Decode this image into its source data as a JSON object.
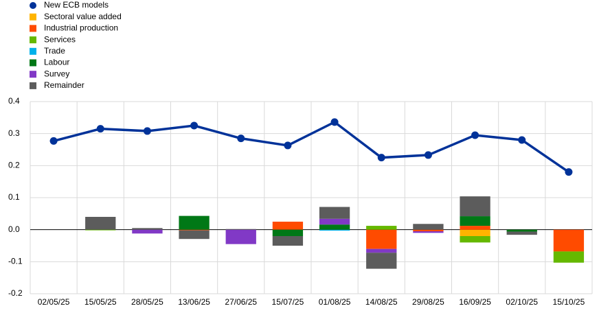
{
  "chart_data": {
    "type": "bar",
    "categories": [
      "02/05/25",
      "15/05/25",
      "28/05/25",
      "13/06/25",
      "27/06/25",
      "15/07/25",
      "01/08/25",
      "14/08/25",
      "29/08/25",
      "16/09/25",
      "02/10/25",
      "15/10/25"
    ],
    "series": [
      {
        "name": "New ECB models",
        "type": "line",
        "color": "#003299",
        "values": [
          0.277,
          0.315,
          0.308,
          0.325,
          0.285,
          0.263,
          0.336,
          0.225,
          0.233,
          0.295,
          0.28,
          0.18
        ]
      },
      {
        "name": "Sectoral value added",
        "type": "bar",
        "color": "#ffb400",
        "values": [
          0,
          0,
          0,
          0,
          0,
          0,
          0,
          0,
          0,
          -0.02,
          0,
          0
        ]
      },
      {
        "name": "Industrial production",
        "type": "bar",
        "color": "#ff4b00",
        "values": [
          0,
          0,
          0,
          -0.002,
          0,
          0.025,
          0,
          -0.06,
          -0.005,
          0.012,
          0,
          -0.068
        ]
      },
      {
        "name": "Services",
        "type": "bar",
        "color": "#65b800",
        "values": [
          0,
          -0.002,
          0,
          0,
          0,
          0,
          0,
          0.012,
          0,
          -0.02,
          0,
          -0.035
        ]
      },
      {
        "name": "Trade",
        "type": "bar",
        "color": "#00b1ea",
        "values": [
          0,
          0,
          0,
          0,
          0,
          0,
          -0.003,
          0,
          0,
          0,
          0,
          0
        ]
      },
      {
        "name": "Labour",
        "type": "bar",
        "color": "#007816",
        "values": [
          0,
          0,
          0,
          0.043,
          0,
          -0.02,
          0.016,
          0,
          0,
          0.03,
          -0.006,
          0
        ]
      },
      {
        "name": "Survey",
        "type": "bar",
        "color": "#8139c6",
        "values": [
          0,
          0,
          -0.012,
          0,
          -0.045,
          0,
          0.018,
          -0.012,
          -0.005,
          0,
          0,
          0
        ]
      },
      {
        "name": "Remainder",
        "type": "bar",
        "color": "#5c5c5c",
        "values": [
          0,
          0.04,
          0.005,
          -0.027,
          0.002,
          -0.03,
          0.037,
          -0.05,
          0.018,
          0.062,
          -0.01,
          0
        ]
      }
    ],
    "ylim": [
      -0.2,
      0.4
    ],
    "yticks": [
      0.4,
      0.3,
      0.2,
      0.1,
      {
        "value": 0,
        "label": "0.0"
      },
      -0.1,
      -0.2
    ],
    "grid": true
  }
}
